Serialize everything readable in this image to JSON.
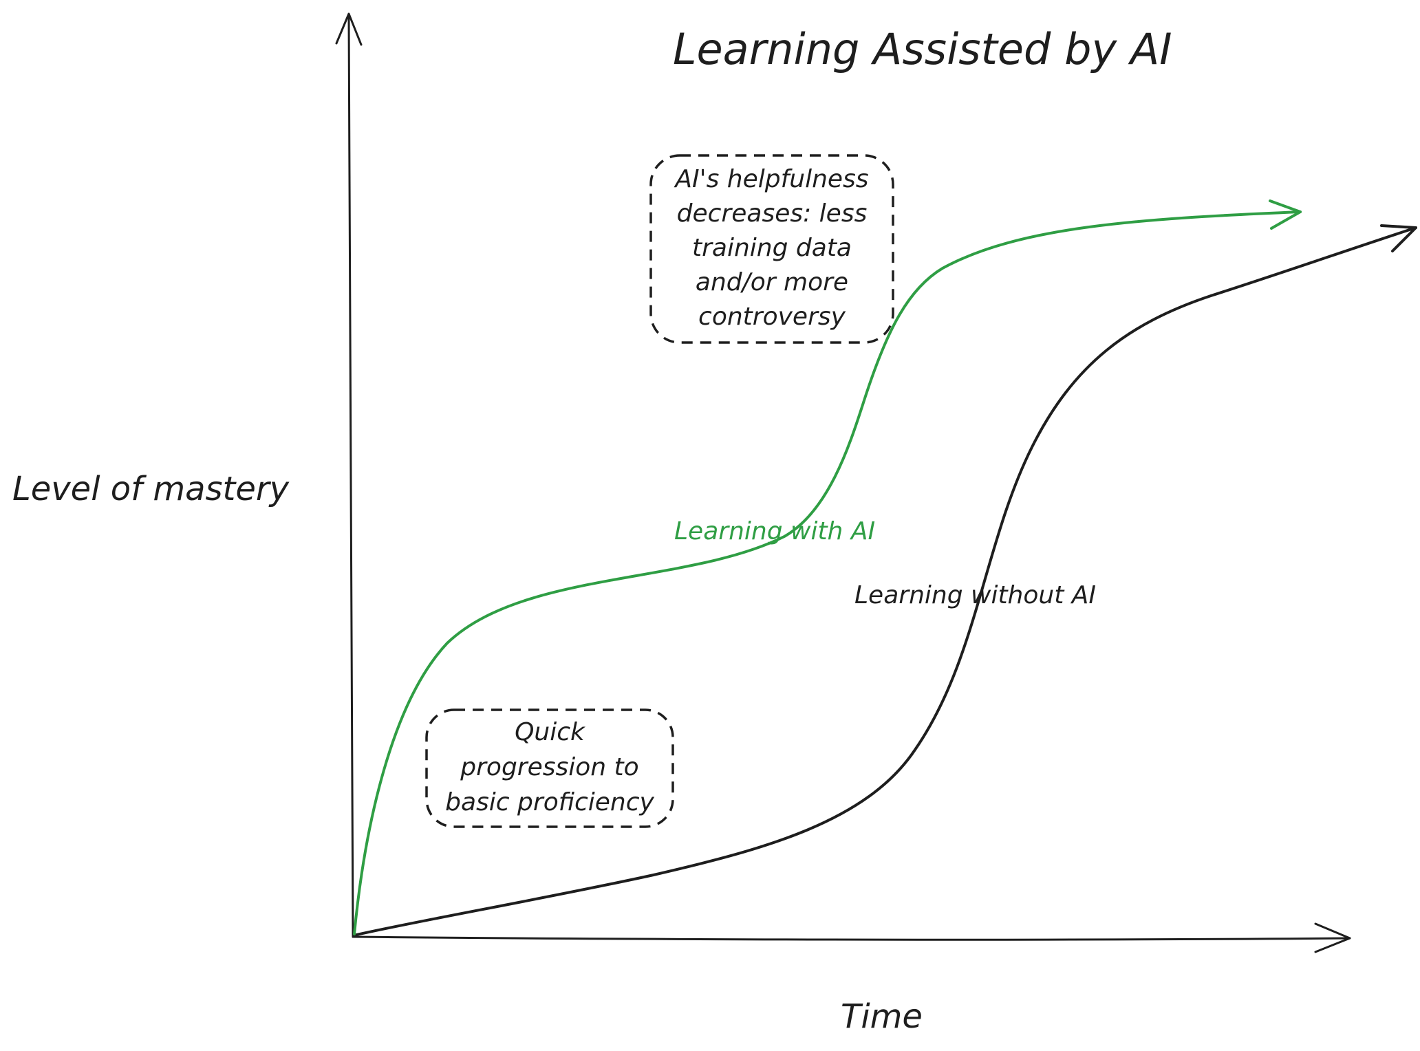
{
  "title": "Learning Assisted by AI",
  "axes": {
    "y_label": "Level of mastery",
    "x_label": "Time"
  },
  "series": [
    {
      "name": "Learning with AI",
      "color": "#2f9e44",
      "shape": "fast rise to basic proficiency, plateau, second rise, then leveling off"
    },
    {
      "name": "Learning without AI",
      "color": "#1e1e1e",
      "shape": "slow gradual rise, steep middle climb, then continued rise"
    }
  ],
  "labels": {
    "with_ai": "Learning with AI",
    "without_ai": "Learning without AI"
  },
  "notes": {
    "helpfulness": {
      "lines": [
        "AI's helpfulness",
        "decreases: less",
        "training data",
        "and/or more",
        "controversy"
      ]
    },
    "quick": {
      "lines": [
        "Quick",
        "progression to",
        "basic proficiency"
      ]
    }
  },
  "colors": {
    "ink": "#1e1e1e",
    "green": "#2f9e44",
    "background": "#ffffff"
  }
}
